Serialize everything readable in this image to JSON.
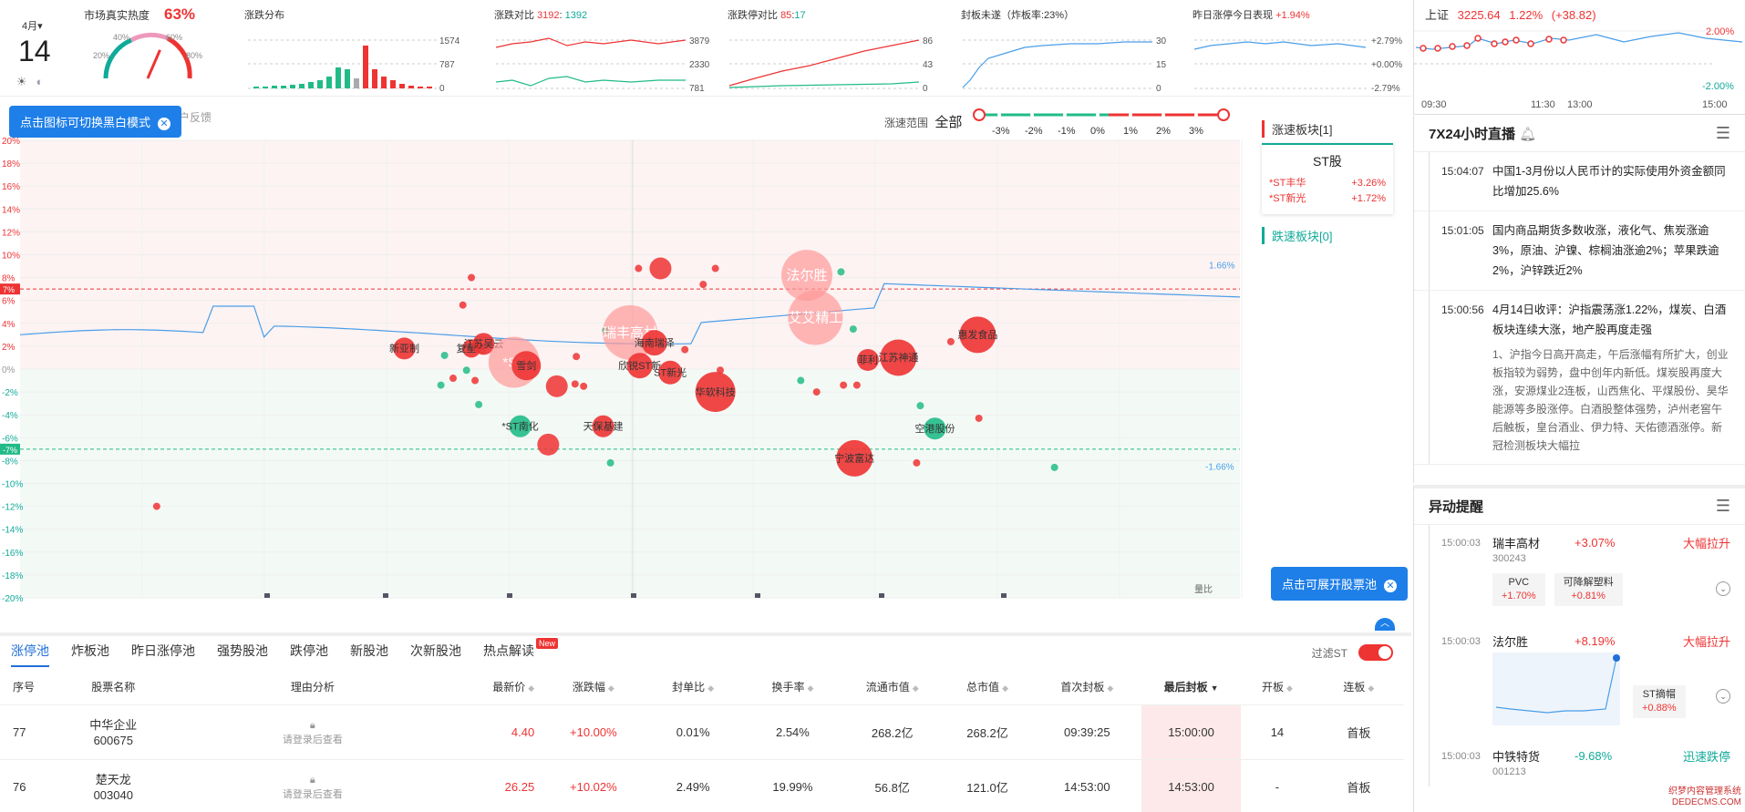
{
  "date": {
    "month": "4月▾",
    "day": "14"
  },
  "heat": {
    "title": "市场真实热度",
    "value": "63%",
    "ticks": [
      "20%",
      "40%",
      "60%",
      "80%"
    ],
    "level": 0.63
  },
  "mini_charts": [
    {
      "title": "涨跌分布",
      "labels": [
        "1574",
        "787",
        "0"
      ]
    },
    {
      "title": "涨跌对比",
      "a": "3192",
      "b": "1392",
      "labels": [
        "3879",
        "2330",
        "781"
      ]
    },
    {
      "title": "涨跌停对比",
      "a": "85",
      "b": "17",
      "labels": [
        "86",
        "43",
        "0"
      ]
    },
    {
      "title": "封板未遂（炸板率:23%）",
      "labels": [
        "30",
        "15",
        "0"
      ]
    },
    {
      "title": "昨日涨停今日表现",
      "value": "+1.94%",
      "labels": [
        "+2.79%",
        "+0.00%",
        "-2.79%"
      ]
    }
  ],
  "index": {
    "name": "上证",
    "price": "3225.64",
    "pct": "1.22%",
    "chg": "(+38.82)",
    "y_top": "2.00%",
    "y_bot": "-2.00%",
    "times": [
      "09:30",
      "11:30",
      "13:00",
      "15:00"
    ]
  },
  "tooltips": {
    "mode": "点击图标可切换黑白模式",
    "pool": "点击可展开股票池",
    "faded": "户反馈"
  },
  "range": {
    "label": "涨速范围",
    "value": "全部",
    "ticks": [
      "-3%",
      "-2%",
      "-1%",
      "0%",
      "1%",
      "2%",
      "3%"
    ]
  },
  "chart_data": {
    "type": "scatter",
    "y_ticks": [
      "20%",
      "18%",
      "16%",
      "14%",
      "12%",
      "10%",
      "8%",
      "6%",
      "4%",
      "2%",
      "0%",
      "-2%",
      "-4%",
      "-6%",
      "-8%",
      "-10%",
      "-12%",
      "-14%",
      "-16%",
      "-18%",
      "-20%"
    ],
    "ylim": [
      -20,
      20
    ],
    "limit_labels": [
      "7%",
      "-7%"
    ],
    "index_labels": [
      "1.66%",
      "-1.66%"
    ],
    "volume_label": "量比",
    "labeled_bubbles": [
      {
        "name": "新亚制",
        "x": 0.315,
        "y": 1.8,
        "size": 12,
        "color": "#e33"
      },
      {
        "name": "复星医",
        "x": 0.37,
        "y": 1.8,
        "size": 10,
        "color": "#e33"
      },
      {
        "name": "江苏吴云",
        "x": 0.38,
        "y": 2.2,
        "size": 12,
        "color": "#e33"
      },
      {
        "name": "*ST",
        "x": 0.405,
        "y": 0.6,
        "size": 28,
        "color": "#f99"
      },
      {
        "name": "雪剑",
        "x": 0.415,
        "y": 0.3,
        "size": 16,
        "color": "#e33"
      },
      {
        "name": "瑞丰高材",
        "x": 0.5,
        "y": 3.2,
        "size": 30,
        "color": "#f99"
      },
      {
        "name": "海南瑞泽",
        "x": 0.52,
        "y": 2.3,
        "size": 14,
        "color": "#e33"
      },
      {
        "name": "欣锐ST新",
        "x": 0.508,
        "y": 0.3,
        "size": 14,
        "color": "#e33"
      },
      {
        "name": "ST新光",
        "x": 0.533,
        "y": -0.3,
        "size": 13,
        "color": "#e33"
      },
      {
        "name": "华软科技",
        "x": 0.57,
        "y": -2.0,
        "size": 22,
        "color": "#e33"
      },
      {
        "name": "法尔胜",
        "x": 0.645,
        "y": 8.2,
        "size": 28,
        "color": "#f99"
      },
      {
        "name": "艾艾精工",
        "x": 0.652,
        "y": 4.5,
        "size": 30,
        "color": "#f99"
      },
      {
        "name": "菲利",
        "x": 0.695,
        "y": 0.8,
        "size": 12,
        "color": "#e33"
      },
      {
        "name": "江苏神通",
        "x": 0.72,
        "y": 1.0,
        "size": 20,
        "color": "#e33"
      },
      {
        "name": "惠发食品",
        "x": 0.785,
        "y": 3.0,
        "size": 20,
        "color": "#e33"
      },
      {
        "name": "*ST南化",
        "x": 0.41,
        "y": -5.0,
        "size": 12,
        "color": "#2b8"
      },
      {
        "name": "天保基建",
        "x": 0.478,
        "y": -5.0,
        "size": 12,
        "color": "#e33"
      },
      {
        "name": "宁波富达",
        "x": 0.684,
        "y": -7.8,
        "size": 20,
        "color": "#e33"
      },
      {
        "name": "空港股份",
        "x": 0.75,
        "y": -5.2,
        "size": 12,
        "color": "#2b8"
      }
    ],
    "dots": [
      {
        "x": 0.112,
        "y": -12.0,
        "size": 4,
        "color": "#e33"
      },
      {
        "x": 0.37,
        "y": 8.0,
        "size": 4,
        "color": "#e33"
      },
      {
        "x": 0.363,
        "y": 5.6,
        "size": 4,
        "color": "#e33"
      },
      {
        "x": 0.348,
        "y": 1.2,
        "size": 4,
        "color": "#2b8"
      },
      {
        "x": 0.345,
        "y": -1.4,
        "size": 4,
        "color": "#2b8"
      },
      {
        "x": 0.355,
        "y": -0.8,
        "size": 4,
        "color": "#e33"
      },
      {
        "x": 0.366,
        "y": -0.1,
        "size": 4,
        "color": "#2b8"
      },
      {
        "x": 0.373,
        "y": -1.0,
        "size": 4,
        "color": "#e33"
      },
      {
        "x": 0.376,
        "y": -3.1,
        "size": 4,
        "color": "#2b8"
      },
      {
        "x": 0.44,
        "y": -1.5,
        "size": 12,
        "color": "#e33"
      },
      {
        "x": 0.433,
        "y": -6.6,
        "size": 12,
        "color": "#e33"
      },
      {
        "x": 0.456,
        "y": 1.1,
        "size": 4,
        "color": "#e33"
      },
      {
        "x": 0.455,
        "y": -1.3,
        "size": 4,
        "color": "#e33"
      },
      {
        "x": 0.462,
        "y": -1.5,
        "size": 4,
        "color": "#e33"
      },
      {
        "x": 0.48,
        "y": 3.4,
        "size": 4,
        "color": "#2b8"
      },
      {
        "x": 0.484,
        "y": -8.2,
        "size": 4,
        "color": "#2b8"
      },
      {
        "x": 0.507,
        "y": 8.8,
        "size": 4,
        "color": "#e33"
      },
      {
        "x": 0.525,
        "y": 8.8,
        "size": 12,
        "color": "#e33"
      },
      {
        "x": 0.545,
        "y": 1.7,
        "size": 4,
        "color": "#e33"
      },
      {
        "x": 0.56,
        "y": 7.4,
        "size": 4,
        "color": "#e33"
      },
      {
        "x": 0.57,
        "y": 8.8,
        "size": 4,
        "color": "#e33"
      },
      {
        "x": 0.574,
        "y": -0.1,
        "size": 4,
        "color": "#e33"
      },
      {
        "x": 0.673,
        "y": 8.5,
        "size": 4,
        "color": "#2b8"
      },
      {
        "x": 0.683,
        "y": 3.5,
        "size": 4,
        "color": "#2b8"
      },
      {
        "x": 0.64,
        "y": -1.0,
        "size": 4,
        "color": "#2b8"
      },
      {
        "x": 0.653,
        "y": -2.0,
        "size": 4,
        "color": "#e33"
      },
      {
        "x": 0.675,
        "y": -1.4,
        "size": 4,
        "color": "#e33"
      },
      {
        "x": 0.686,
        "y": -1.4,
        "size": 4,
        "color": "#e33"
      },
      {
        "x": 0.735,
        "y": -8.2,
        "size": 4,
        "color": "#e33"
      },
      {
        "x": 0.738,
        "y": -3.2,
        "size": 4,
        "color": "#2b8"
      },
      {
        "x": 0.763,
        "y": 2.4,
        "size": 4,
        "color": "#e33"
      },
      {
        "x": 0.786,
        "y": -4.3,
        "size": 4,
        "color": "#e33"
      },
      {
        "x": 0.848,
        "y": -8.6,
        "size": 4,
        "color": "#2b8"
      }
    ]
  },
  "side": {
    "rise_title": "涨速板块[1]",
    "fall_title": "跌速板块[0]",
    "card_title": "ST股",
    "card_rows": [
      {
        "name": "*ST丰华",
        "pct": "+3.26%"
      },
      {
        "name": "*ST新光",
        "pct": "+1.72%"
      }
    ]
  },
  "tabs": [
    "涨停池",
    "炸板池",
    "昨日涨停池",
    "强势股池",
    "跌停池",
    "新股池",
    "次新股池",
    "热点解读"
  ],
  "new_badge": "New",
  "filter_label": "过滤ST",
  "table": {
    "headers": [
      "序号",
      "股票名称",
      "理由分析",
      "最新价",
      "涨跌幅",
      "封单比",
      "换手率",
      "流通市值",
      "总市值",
      "首次封板",
      "最后封板",
      "开板",
      "连板"
    ],
    "rows": [
      {
        "no": "77",
        "name": "中华企业",
        "code": "600675",
        "reason": "请登录后查看",
        "price": "4.40",
        "pct": "+10.00%",
        "ratio": "0.01%",
        "turnover": "2.54%",
        "float": "268.2亿",
        "total": "268.2亿",
        "first": "09:39:25",
        "last": "15:00:00",
        "open": "14",
        "board": "首板"
      },
      {
        "no": "76",
        "name": "楚天龙",
        "code": "003040",
        "reason": "请登录后查看",
        "price": "26.25",
        "pct": "+10.02%",
        "ratio": "2.49%",
        "turnover": "19.99%",
        "float": "56.8亿",
        "total": "121.0亿",
        "first": "14:53:00",
        "last": "14:53:00",
        "open": "-",
        "board": "首板"
      }
    ]
  },
  "news": {
    "title": "7X24小时直播",
    "items": [
      {
        "time": "15:04:07",
        "text": "中国1-3月份以人民币计的实际使用外资金额同比增加25.6%",
        "body": ""
      },
      {
        "time": "15:01:05",
        "text": "国内商品期货多数收涨，液化气、焦炭涨逾3%，原油、沪镍、棕榈油涨逾2%；苹果跌逾2%，沪锌跌近2%",
        "body": ""
      },
      {
        "time": "15:00:56",
        "text": "4月14日收评：沪指震荡涨1.22%，煤炭、白酒板块连续大涨，地产股再度走强",
        "body": "1、沪指今日高开高走，午后涨幅有所扩大，创业板指较为弱势，盘中创年内新低。煤炭股再度大涨，安源煤业2连板，山西焦化、平煤股份、昊华能源等多股涨停。白酒股整体强势，泸州老窖午后触板，皇台酒业、伊力特、天佑德酒涨停。新冠检测板块大幅拉"
      }
    ]
  },
  "alerts": {
    "title": "异动提醒",
    "items": [
      {
        "time": "15:00:03",
        "name": "瑞丰高材",
        "code": "300243",
        "pct": "+3.07%",
        "tag": "大幅拉升",
        "chips": [
          {
            "name": "PVC",
            "pct": "+1.70%"
          },
          {
            "name": "可降解塑料",
            "pct": "+0.81%"
          }
        ]
      },
      {
        "time": "15:00:03",
        "name": "法尔胜",
        "code": "",
        "pct": "+8.19%",
        "tag": "大幅拉升",
        "chips": [
          {
            "name": "ST摘帽",
            "pct": "+0.88%"
          }
        ]
      },
      {
        "time": "15:00:03",
        "name": "中铁特货",
        "code": "001213",
        "pct": "-9.68%",
        "tag": "迅速跌停",
        "chips": []
      }
    ]
  },
  "watermark": [
    "织梦内容管理系统",
    "DEDECMS.COM"
  ]
}
